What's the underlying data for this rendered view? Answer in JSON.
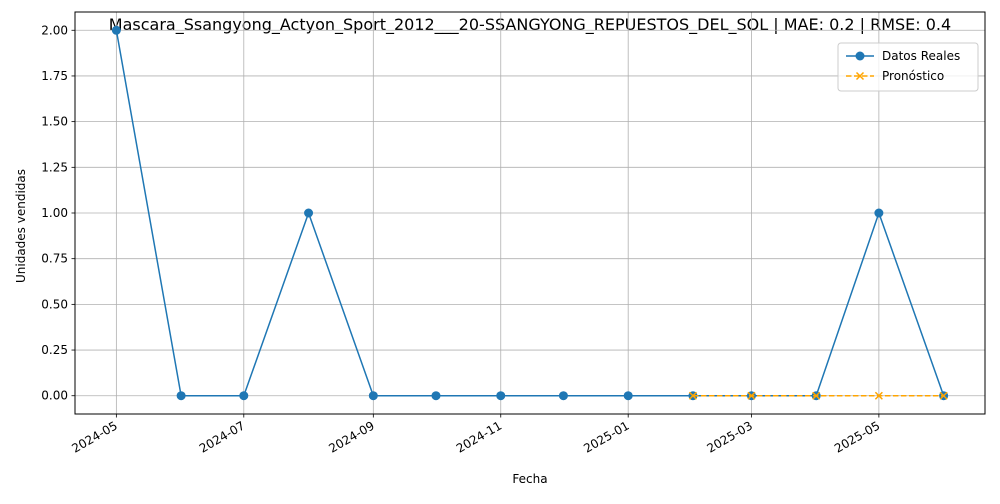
{
  "chart_data": {
    "type": "line",
    "title": "Mascara_Ssangyong_Actyon_Sport_2012___20-SSANGYONG_REPUESTOS_DEL_SOL | MAE: 0.2 | RMSE: 0.4",
    "xlabel": "Fecha",
    "ylabel": "Unidades vendidas",
    "x_ticks": [
      "2024-05",
      "2024-07",
      "2024-09",
      "2024-11",
      "2025-01",
      "2025-03",
      "2025-05"
    ],
    "y_ticks": [
      "0.00",
      "0.25",
      "0.50",
      "0.75",
      "1.00",
      "1.25",
      "1.50",
      "1.75",
      "2.00"
    ],
    "ylim": [
      -0.1,
      2.1
    ],
    "grid": true,
    "legend_position": "top-right",
    "series": [
      {
        "name": "Datos Reales",
        "color": "#1f77b4",
        "marker": "circle",
        "line_style": "solid",
        "x": [
          "2024-05",
          "2024-06",
          "2024-07",
          "2024-08",
          "2024-09",
          "2024-10",
          "2024-11",
          "2024-12",
          "2025-01",
          "2025-02",
          "2025-03",
          "2025-04",
          "2025-05",
          "2025-06"
        ],
        "values": [
          2,
          0,
          0,
          1,
          0,
          0,
          0,
          0,
          0,
          0,
          0,
          0,
          1,
          0
        ]
      },
      {
        "name": "Pronóstico",
        "color": "#ffa500",
        "marker": "x",
        "line_style": "dashed",
        "x": [
          "2025-02",
          "2025-03",
          "2025-04",
          "2025-05",
          "2025-06"
        ],
        "values": [
          0,
          0,
          0,
          0,
          0
        ]
      }
    ]
  }
}
